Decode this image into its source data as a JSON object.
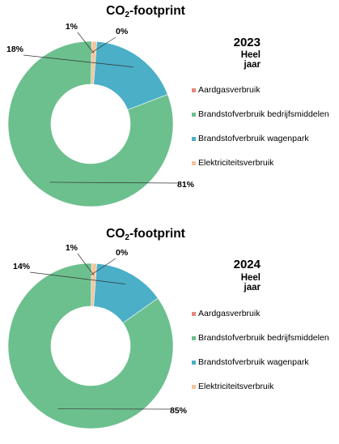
{
  "chart_data": [
    {
      "type": "pie",
      "title": "CO",
      "title_subscript": "2",
      "title_suffix": "-footprint",
      "year": "2023",
      "period": "Heel jaar",
      "categories": [
        "Aardgasverbruik",
        "Brandstofverbruik bedrijfsmiddelen",
        "Brandstofverbruik wagenpark",
        "Elektriciteitsverbruik"
      ],
      "values": [
        0,
        81,
        18,
        1
      ],
      "labels": [
        "0%",
        "81%",
        "18%",
        "1%"
      ],
      "colors": [
        "#E48A7A",
        "#6CC08E",
        "#4BAFC8",
        "#F4C49A"
      ],
      "legend_position": "right"
    },
    {
      "type": "pie",
      "title": "CO",
      "title_subscript": "2",
      "title_suffix": "-footprint",
      "year": "2024",
      "period": "Heel jaar",
      "categories": [
        "Aardgasverbruik",
        "Brandstofverbruik bedrijfsmiddelen",
        "Brandstofverbruik wagenpark",
        "Elektriciteitsverbruik"
      ],
      "values": [
        0,
        85,
        14,
        1
      ],
      "labels": [
        "0%",
        "85%",
        "14%",
        "1%"
      ],
      "colors": [
        "#E48A7A",
        "#6CC08E",
        "#4BAFC8",
        "#F4C49A"
      ],
      "legend_position": "right"
    }
  ]
}
